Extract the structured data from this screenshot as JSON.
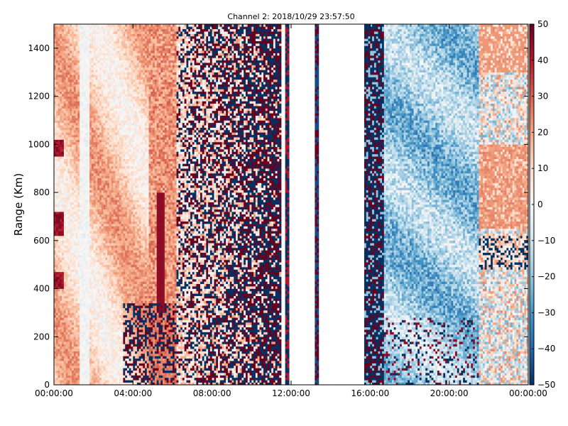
{
  "chart_data": {
    "type": "heatmap",
    "title": "Channel 2: 2018/10/29 23:57:50",
    "xlabel": "",
    "ylabel": "Range (Km)",
    "x_tick_labels": [
      "00:00:00",
      "04:00:00",
      "08:00:00",
      "12:00:00",
      "16:00:00",
      "20:00:00",
      "00:00:00"
    ],
    "x_ticks_hours": [
      0,
      4,
      8,
      12,
      16,
      20,
      24
    ],
    "xlim_hours": [
      0,
      24
    ],
    "y_tick_labels": [
      "0",
      "200",
      "400",
      "600",
      "800",
      "1000",
      "1200",
      "1400"
    ],
    "y_ticks": [
      0,
      200,
      400,
      600,
      800,
      1000,
      1200,
      1400
    ],
    "ylim": [
      0,
      1500
    ],
    "colorbar": {
      "tick_labels": [
        "50",
        "40",
        "30",
        "20",
        "10",
        "0",
        "−10",
        "−20",
        "−30",
        "−40",
        "−50"
      ],
      "ticks": [
        50,
        40,
        30,
        20,
        10,
        0,
        -10,
        -20,
        -30,
        -40,
        -50
      ],
      "range": [
        -50,
        50
      ],
      "colormap": "RdBu_r"
    },
    "blank_gaps_hours": [
      [
        11.55,
        11.75
      ],
      [
        11.95,
        13.2
      ],
      [
        13.4,
        15.7
      ]
    ],
    "narrow_strip_hours": [
      13.2,
      13.4
    ],
    "bands": [
      {
        "hours": [
          0,
          4.8
        ],
        "description": "mostly positive values, light red"
      },
      {
        "hours": [
          4.8,
          6.2
        ],
        "description": "positive streak, stronger red"
      },
      {
        "hours": [
          6.2,
          11.5
        ],
        "description": "noisy values alternating between strongly positive and strongly negative"
      },
      {
        "hours": [
          15.7,
          16.7
        ],
        "description": "noisy values alternating between strongly positive and strongly negative"
      },
      {
        "hours": [
          16.7,
          21.5
        ],
        "description": "mostly negative values, light blue"
      },
      {
        "hours": [
          21.5,
          24
        ],
        "description": "mixed values, positive patches near top"
      }
    ],
    "grid": false,
    "colors": {
      "strong_red": "#67001f",
      "red": "#d6604d",
      "light_red": "#f4a582",
      "pale_red": "#fddbc7",
      "white": "#f7f7f7",
      "pale_blue": "#d1e5f0",
      "light_blue": "#92c5de",
      "blue": "#4393c3",
      "strong_blue": "#053061"
    }
  }
}
